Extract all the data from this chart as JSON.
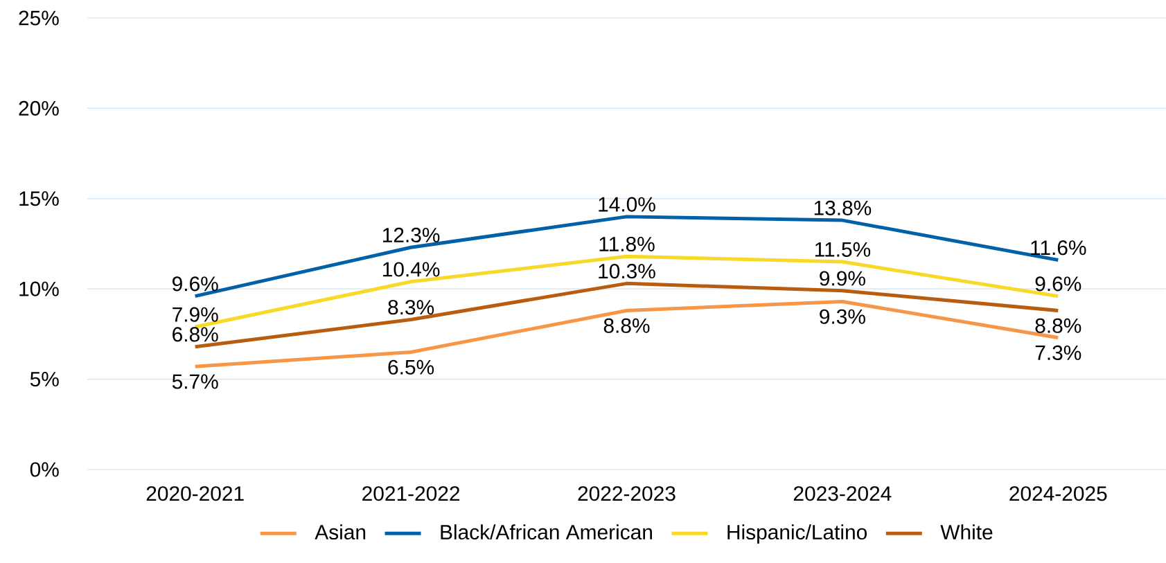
{
  "chart_data": {
    "type": "line",
    "categories": [
      "2020-2021",
      "2021-2022",
      "2022-2023",
      "2023-2024",
      "2024-2025"
    ],
    "series": [
      {
        "name": "Asian",
        "color": "#f79646",
        "values": [
          5.7,
          6.5,
          8.8,
          9.3,
          7.3
        ],
        "value_labels": [
          "5.7%",
          "6.5%",
          "8.8%",
          "9.3%",
          "7.3%"
        ]
      },
      {
        "name": "Black/African American",
        "color": "#0060a8",
        "values": [
          9.6,
          12.3,
          14.0,
          13.8,
          11.6
        ],
        "value_labels": [
          "9.6%",
          "12.3%",
          "14.0%",
          "13.8%",
          "11.6%"
        ]
      },
      {
        "name": "Hispanic/Latino",
        "color": "#f9d927",
        "values": [
          7.9,
          10.4,
          11.8,
          11.5,
          9.6
        ],
        "value_labels": [
          "7.9%",
          "10.4%",
          "11.8%",
          "11.5%",
          "9.6%"
        ]
      },
      {
        "name": "White",
        "color": "#b85c10",
        "values": [
          6.8,
          8.3,
          10.3,
          9.9,
          8.8
        ],
        "value_labels": [
          "6.8%",
          "8.3%",
          "10.3%",
          "9.9%",
          "8.8%"
        ]
      }
    ],
    "ylim": [
      0,
      25
    ],
    "yticks": [
      {
        "value": 0,
        "label": "0%"
      },
      {
        "value": 5,
        "label": "5%"
      },
      {
        "value": 10,
        "label": "10%"
      },
      {
        "value": 15,
        "label": "15%"
      },
      {
        "value": 20,
        "label": "20%"
      },
      {
        "value": 25,
        "label": "25%"
      }
    ],
    "grid": "y",
    "legend": "bottom",
    "marker": "none",
    "line_style": "solid"
  }
}
